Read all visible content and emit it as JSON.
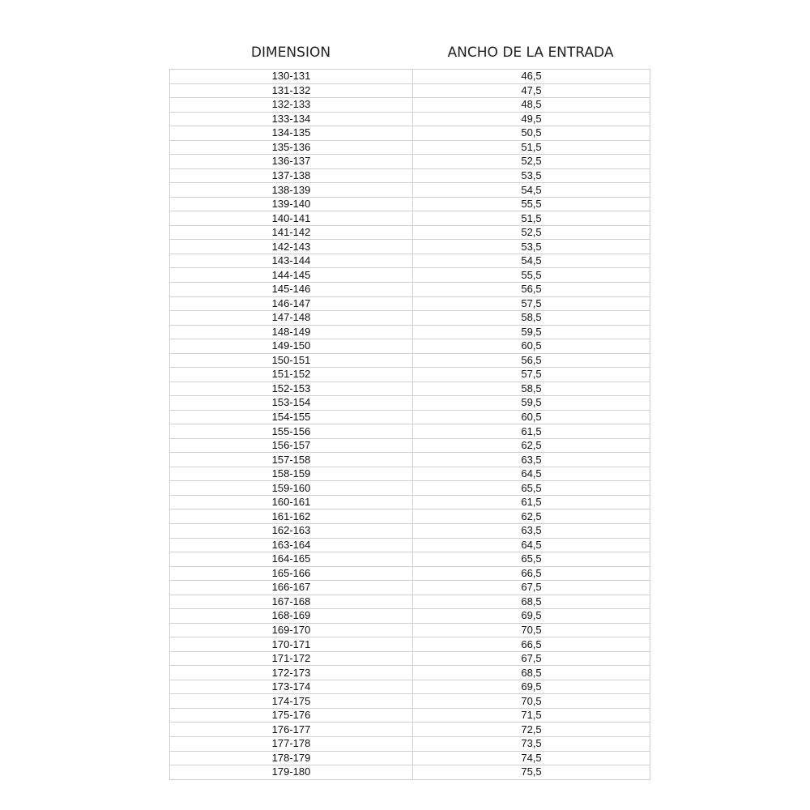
{
  "headers": {
    "dimension": "DIMENSION",
    "width": "ANCHO DE LA ENTRADA"
  },
  "rows": [
    [
      "130-131",
      "46,5"
    ],
    [
      "131-132",
      "47,5"
    ],
    [
      "132-133",
      "48,5"
    ],
    [
      "133-134",
      "49,5"
    ],
    [
      "134-135",
      "50,5"
    ],
    [
      "135-136",
      "51,5"
    ],
    [
      "136-137",
      "52,5"
    ],
    [
      "137-138",
      "53,5"
    ],
    [
      "138-139",
      "54,5"
    ],
    [
      "139-140",
      "55,5"
    ],
    [
      "140-141",
      "51,5"
    ],
    [
      "141-142",
      "52,5"
    ],
    [
      "142-143",
      "53,5"
    ],
    [
      "143-144",
      "54,5"
    ],
    [
      "144-145",
      "55,5"
    ],
    [
      "145-146",
      "56,5"
    ],
    [
      "146-147",
      "57,5"
    ],
    [
      "147-148",
      "58,5"
    ],
    [
      "148-149",
      "59,5"
    ],
    [
      "149-150",
      "60,5"
    ],
    [
      "150-151",
      "56,5"
    ],
    [
      "151-152",
      "57,5"
    ],
    [
      "152-153",
      "58,5"
    ],
    [
      "153-154",
      "59,5"
    ],
    [
      "154-155",
      "60,5"
    ],
    [
      "155-156",
      "61,5"
    ],
    [
      "156-157",
      "62,5"
    ],
    [
      "157-158",
      "63,5"
    ],
    [
      "158-159",
      "64,5"
    ],
    [
      "159-160",
      "65,5"
    ],
    [
      "160-161",
      "61,5"
    ],
    [
      "161-162",
      "62,5"
    ],
    [
      "162-163",
      "63,5"
    ],
    [
      "163-164",
      "64,5"
    ],
    [
      "164-165",
      "65,5"
    ],
    [
      "165-166",
      "66,5"
    ],
    [
      "166-167",
      "67,5"
    ],
    [
      "167-168",
      "68,5"
    ],
    [
      "168-169",
      "69,5"
    ],
    [
      "169-170",
      "70,5"
    ],
    [
      "170-171",
      "66,5"
    ],
    [
      "171-172",
      "67,5"
    ],
    [
      "172-173",
      "68,5"
    ],
    [
      "173-174",
      "69,5"
    ],
    [
      "174-175",
      "70,5"
    ],
    [
      "175-176",
      "71,5"
    ],
    [
      "176-177",
      "72,5"
    ],
    [
      "177-178",
      "73,5"
    ],
    [
      "178-179",
      "74,5"
    ],
    [
      "179-180",
      "75,5"
    ]
  ]
}
